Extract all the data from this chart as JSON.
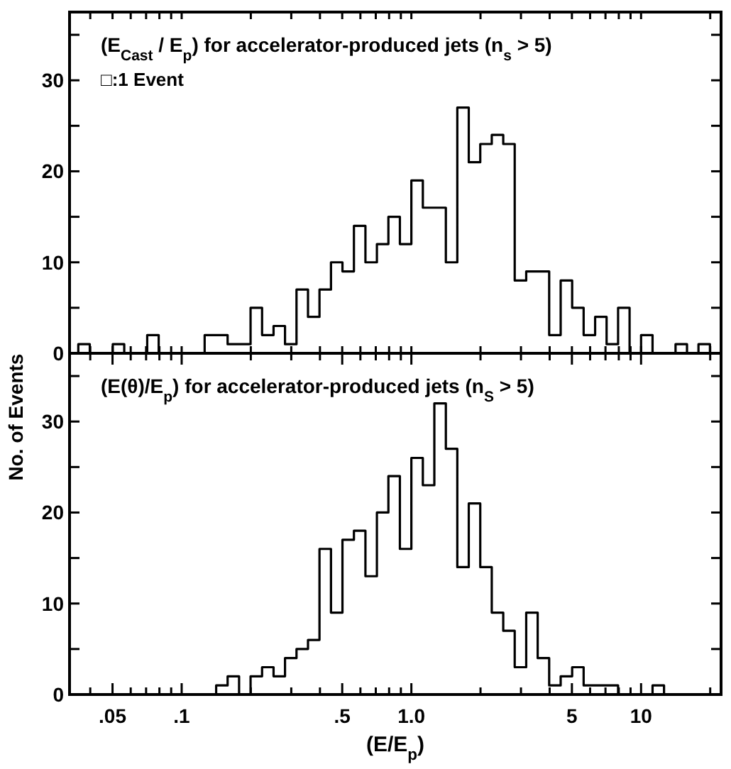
{
  "chart_data": [
    {
      "type": "histogram",
      "title": "(E$_{Cast}$ / E$_{p}$) for accelerator-produced jets (n$_{s}$ > 5)",
      "annotations": [
        "□:1 Event"
      ],
      "color": "#000000",
      "bins": [
        0.03548,
        0.03981,
        0.04467,
        0.05012,
        0.05623,
        0.0631,
        0.07079,
        0.07943,
        0.08913,
        0.1,
        0.1122,
        0.1259,
        0.1413,
        0.1585,
        0.1778,
        0.1995,
        0.2239,
        0.2512,
        0.2818,
        0.3162,
        0.3548,
        0.3981,
        0.4467,
        0.5012,
        0.5623,
        0.631,
        0.7079,
        0.7943,
        0.8913,
        1,
        1.122,
        1.259,
        1.413,
        1.585,
        1.778,
        1.995,
        2.239,
        2.512,
        2.818,
        3.162,
        3.548,
        3.981,
        4.467,
        5.012,
        5.623,
        6.31,
        7.079,
        7.943,
        8.913,
        10,
        11.22,
        12.59,
        14.13,
        15.85,
        17.78,
        19.95
      ],
      "values": [
        1,
        0,
        0,
        1,
        0,
        0,
        2,
        0,
        0,
        0,
        0,
        2,
        2,
        1,
        1,
        5,
        2,
        3,
        1,
        7,
        4,
        7,
        10,
        9,
        14,
        10,
        12,
        15,
        12,
        19,
        16,
        16,
        10,
        27,
        21,
        23,
        24,
        23,
        8,
        9,
        9,
        2,
        8,
        5,
        2,
        4,
        1,
        5,
        0,
        2,
        0,
        0,
        1,
        0,
        1
      ],
      "log": "x",
      "xlim": [
        0.0325,
        22.3
      ],
      "xticks": [
        {
          "value": 0.04,
          "label": null
        },
        {
          "value": 0.05,
          "label": null
        },
        {
          "value": 0.06,
          "label": null
        },
        {
          "value": 0.07,
          "label": null
        },
        {
          "value": 0.08,
          "label": null
        },
        {
          "value": 0.09,
          "label": null
        },
        {
          "value": 0.1,
          "label": null
        },
        {
          "value": 0.2,
          "label": null
        },
        {
          "value": 0.3,
          "label": null
        },
        {
          "value": 0.4,
          "label": null
        },
        {
          "value": 0.5,
          "label": null
        },
        {
          "value": 0.6,
          "label": null
        },
        {
          "value": 0.7,
          "label": null
        },
        {
          "value": 0.8,
          "label": null
        },
        {
          "value": 0.9,
          "label": null
        },
        {
          "value": 1,
          "label": null
        },
        {
          "value": 2,
          "label": null
        },
        {
          "value": 3,
          "label": null
        },
        {
          "value": 4,
          "label": null
        },
        {
          "value": 5,
          "label": null
        },
        {
          "value": 6,
          "label": null
        },
        {
          "value": 7,
          "label": null
        },
        {
          "value": 8,
          "label": null
        },
        {
          "value": 9,
          "label": null
        },
        {
          "value": 10,
          "label": null
        },
        {
          "value": 20,
          "label": null
        }
      ],
      "ylim": [
        0,
        37.5
      ],
      "yticks": [
        0,
        {
          "value": 5,
          "label": null
        },
        10,
        {
          "value": 15,
          "label": null
        },
        20,
        {
          "value": 25,
          "label": null
        },
        30,
        {
          "value": 35,
          "label": null
        }
      ],
      "tick_labels": "y"
    },
    {
      "type": "histogram",
      "title": "(E(θ)/E$_{p}$) for accelerator-produced jets (n$_{S}$ > 5)",
      "xlabel": "(E/E$_{p}$)",
      "ylabel": "No. of Events",
      "color": "#000000",
      "bins": [
        0.03548,
        0.03981,
        0.04467,
        0.05012,
        0.05623,
        0.0631,
        0.07079,
        0.07943,
        0.08913,
        0.1,
        0.1122,
        0.1259,
        0.1413,
        0.1585,
        0.1778,
        0.1995,
        0.2239,
        0.2512,
        0.2818,
        0.3162,
        0.3548,
        0.3981,
        0.4467,
        0.5012,
        0.5623,
        0.631,
        0.7079,
        0.7943,
        0.8913,
        1,
        1.122,
        1.259,
        1.413,
        1.585,
        1.778,
        1.995,
        2.239,
        2.512,
        2.818,
        3.162,
        3.548,
        3.981,
        4.467,
        5.012,
        5.623,
        6.31,
        7.079,
        7.943,
        8.913,
        10,
        11.22,
        12.59,
        14.13,
        15.85,
        17.78,
        19.95
      ],
      "values": [
        0,
        0,
        0,
        0,
        0,
        0,
        0,
        0,
        0,
        0,
        0,
        0,
        1,
        2,
        0,
        2,
        3,
        2,
        4,
        5,
        6,
        16,
        9,
        17,
        18,
        13,
        20,
        24,
        16,
        26,
        23,
        32,
        27,
        14,
        21,
        14,
        9,
        7,
        3,
        9,
        4,
        1,
        2,
        3,
        1,
        1,
        1,
        0,
        0,
        0,
        1,
        0,
        0,
        0,
        0
      ],
      "log": "x",
      "xlim": [
        0.0325,
        22.3
      ],
      "xticks": [
        {
          "value": 0.04,
          "label": null
        },
        {
          "value": 0.05,
          "label": ".05"
        },
        {
          "value": 0.06,
          "label": null
        },
        {
          "value": 0.07,
          "label": null
        },
        {
          "value": 0.08,
          "label": null
        },
        {
          "value": 0.09,
          "label": null
        },
        {
          "value": 0.1,
          "label": ".1"
        },
        {
          "value": 0.2,
          "label": null
        },
        {
          "value": 0.3,
          "label": null
        },
        {
          "value": 0.4,
          "label": null
        },
        {
          "value": 0.5,
          "label": ".5"
        },
        {
          "value": 0.6,
          "label": null
        },
        {
          "value": 0.7,
          "label": null
        },
        {
          "value": 0.8,
          "label": null
        },
        {
          "value": 0.9,
          "label": null
        },
        {
          "value": 1,
          "label": "1.0"
        },
        {
          "value": 2,
          "label": null
        },
        {
          "value": 3,
          "label": null
        },
        {
          "value": 4,
          "label": null
        },
        {
          "value": 5,
          "label": "5"
        },
        {
          "value": 6,
          "label": null
        },
        {
          "value": 7,
          "label": null
        },
        {
          "value": 8,
          "label": null
        },
        {
          "value": 9,
          "label": null
        },
        {
          "value": 10,
          "label": "10"
        },
        {
          "value": 20,
          "label": null
        }
      ],
      "ylim": [
        0,
        37.5
      ],
      "yticks": [
        0,
        {
          "value": 5,
          "label": null
        },
        10,
        {
          "value": 15,
          "label": null
        },
        20,
        {
          "value": 25,
          "label": null
        },
        30,
        {
          "value": 35,
          "label": null
        }
      ]
    }
  ]
}
